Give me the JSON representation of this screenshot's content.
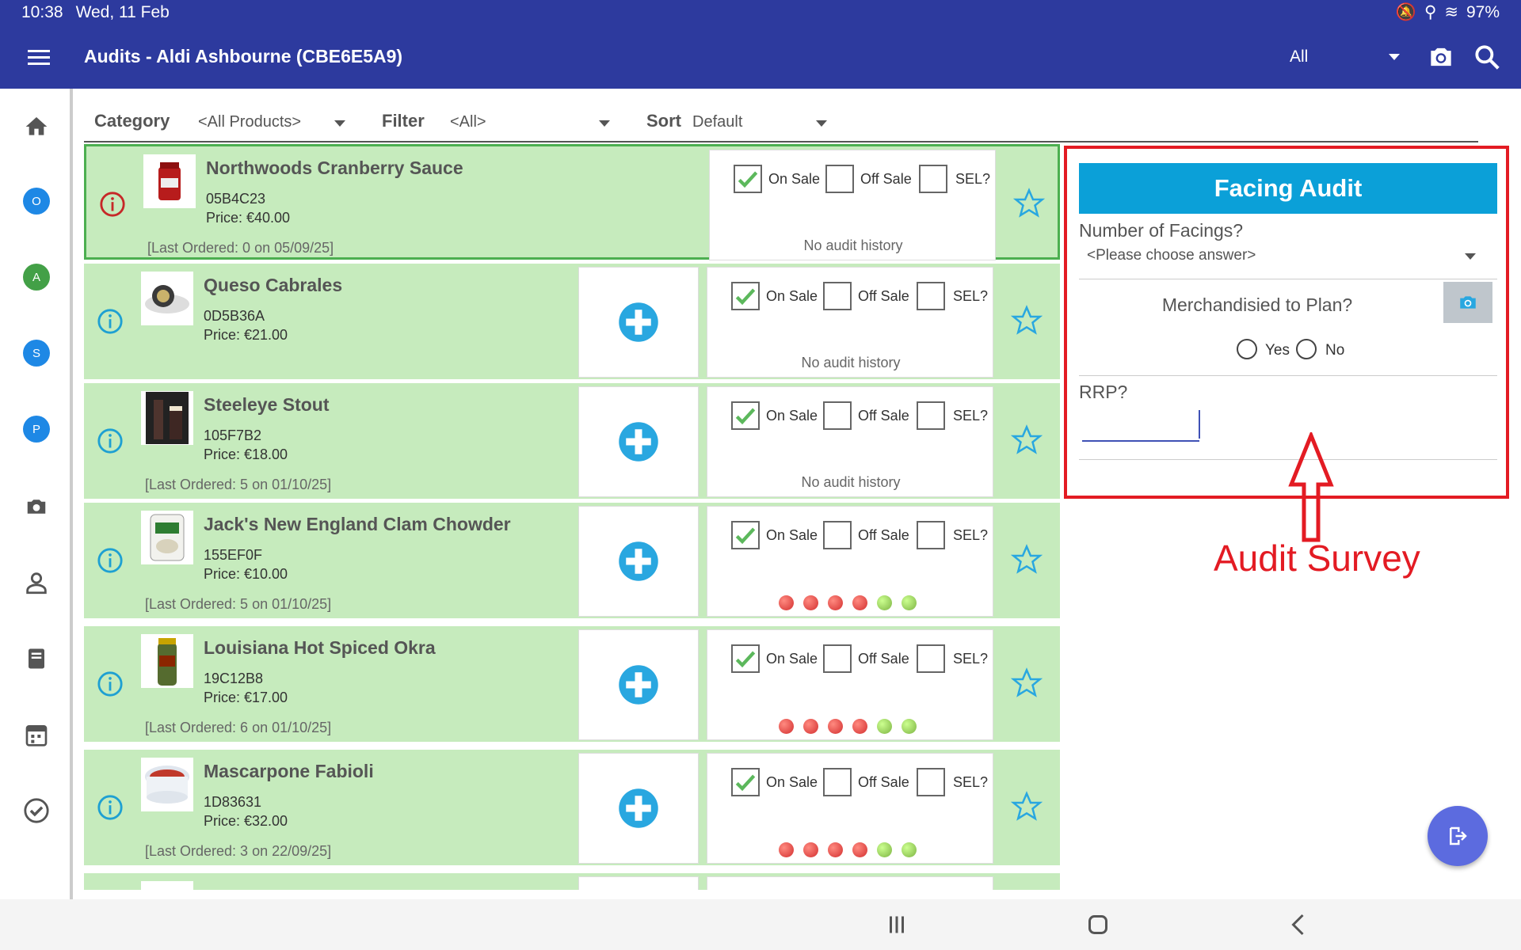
{
  "status": {
    "time": "10:38",
    "date": "Wed, 11 Feb",
    "battery": "97%"
  },
  "appbar": {
    "title": "Audits - Aldi Ashbourne (CBE6E5A9)",
    "scope": "All"
  },
  "sidebar": {
    "badges": [
      "O",
      "A",
      "S",
      "P"
    ],
    "badge_colors": [
      "#1e88e5",
      "#43a047",
      "#1e88e5",
      "#1e88e5"
    ]
  },
  "filters": {
    "category_label": "Category",
    "category_value": "<All Products>",
    "filter_label": "Filter",
    "filter_value": "<All>",
    "sort_label": "Sort",
    "sort_value": "Default"
  },
  "sale_labels": {
    "on": "On Sale",
    "off": "Off Sale",
    "sel": "SEL?"
  },
  "products": [
    {
      "name": "Northwoods Cranberry Sauce",
      "code": "05B4C23",
      "price": "Price: €40.00",
      "last": "[Last Ordered: 0 on 05/09/25]",
      "history": "No audit history",
      "selected": true
    },
    {
      "name": "Queso Cabrales",
      "code": "0D5B36A",
      "price": "Price: €21.00",
      "last": "",
      "history": "No audit history"
    },
    {
      "name": "Steeleye Stout",
      "code": "105F7B2",
      "price": "Price: €18.00",
      "last": "[Last Ordered: 5 on 01/10/25]",
      "history": "No audit history"
    },
    {
      "name": "Jack's New England Clam Chowder",
      "code": "155EF0F",
      "price": "Price: €10.00",
      "last": "[Last Ordered: 5 on 01/10/25]",
      "history": ""
    },
    {
      "name": "Louisiana Hot Spiced Okra",
      "code": "19C12B8",
      "price": "Price: €17.00",
      "last": "[Last Ordered: 6 on 01/10/25]",
      "history": ""
    },
    {
      "name": "Mascarpone Fabioli",
      "code": "1D83631",
      "price": "Price: €32.00",
      "last": "[Last Ordered: 3 on 22/09/25]",
      "history": ""
    }
  ],
  "survey": {
    "title": "Facing Audit",
    "q1": "Number of Facings?",
    "q1_placeholder": "<Please choose answer>",
    "q2": "Merchandisied to Plan?",
    "yes": "Yes",
    "no": "No",
    "q3": "RRP?"
  },
  "annotation": "Audit Survey"
}
